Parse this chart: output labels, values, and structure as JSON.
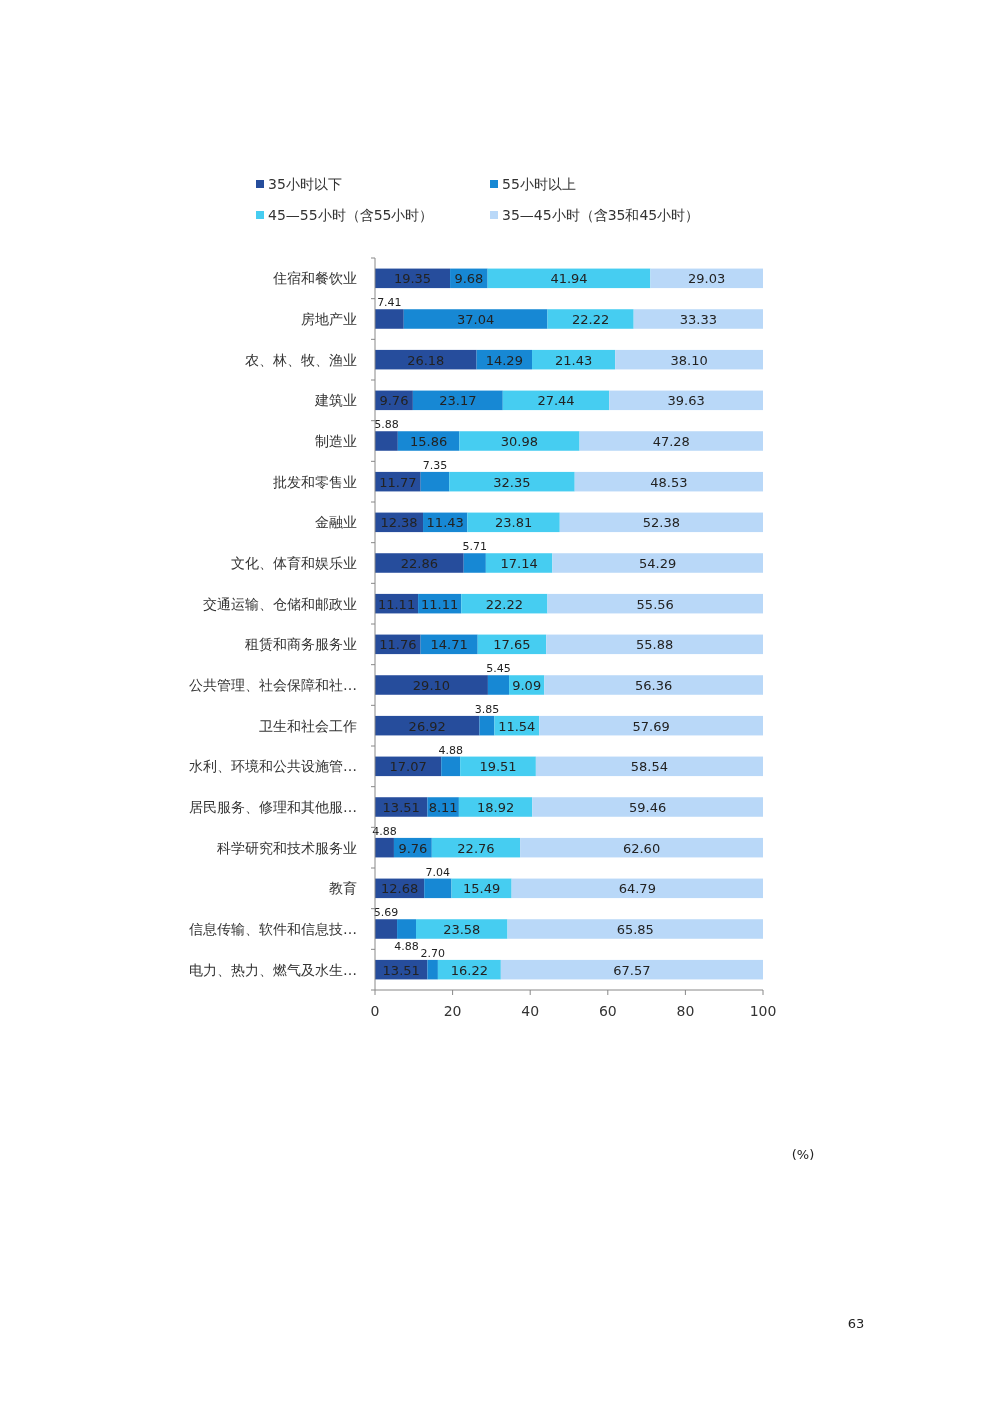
{
  "chart_data": {
    "type": "bar",
    "orientation": "horizontal",
    "stacked": true,
    "categories": [
      "住宿和餐饮业",
      "房地产业",
      "农、林、牧、渔业",
      "建筑业",
      "制造业",
      "批发和零售业",
      "金融业",
      "文化、体育和娱乐业",
      "交通运输、仓储和邮政业",
      "租赁和商务服务业",
      "公共管理、社会保障和社…",
      "卫生和社会工作",
      "水利、环境和公共设施管…",
      "居民服务、修理和其他服…",
      "科学研究和技术服务业",
      "教育",
      "信息传输、软件和信息技…",
      "电力、热力、燃气及水生…"
    ],
    "series": [
      {
        "name": "35小时以下",
        "color": "#264d9c",
        "values": [
          19.35,
          7.41,
          26.18,
          9.76,
          5.88,
          11.77,
          12.38,
          22.86,
          11.11,
          11.76,
          29.1,
          26.92,
          17.07,
          13.51,
          4.88,
          12.68,
          5.69,
          13.51
        ],
        "value_labels": [
          "19.35",
          "7.41",
          "26.18",
          "9.76",
          "5.88",
          "11.77",
          "12.38",
          "22.86",
          "11.11",
          "11.76",
          "29.10",
          "26.92",
          "17.07",
          "13.51",
          "4.88",
          "12.68",
          "5.69",
          "13.51"
        ]
      },
      {
        "name": "55小时以上",
        "color": "#1788d4",
        "values": [
          9.68,
          37.04,
          14.29,
          23.17,
          15.86,
          7.35,
          11.43,
          5.71,
          11.11,
          14.71,
          5.45,
          3.85,
          4.88,
          8.11,
          9.76,
          7.04,
          4.88,
          2.7
        ],
        "value_labels": [
          "9.68",
          "37.04",
          "14.29",
          "23.17",
          "15.86",
          "7.35",
          "11.43",
          "5.71",
          "11.11",
          "14.71",
          "5.45",
          "3.85",
          "4.88",
          "8.11",
          "9.76",
          "7.04",
          "4.88",
          "2.70"
        ]
      },
      {
        "name": "45—55小时（含55小时）",
        "color": "#46cdf1",
        "values": [
          41.94,
          22.22,
          21.43,
          27.44,
          30.98,
          32.35,
          23.81,
          17.14,
          22.22,
          17.65,
          9.09,
          11.54,
          19.51,
          18.92,
          22.76,
          15.49,
          23.58,
          16.22
        ],
        "value_labels": [
          "41.94",
          "22.22",
          "21.43",
          "27.44",
          "30.98",
          "32.35",
          "23.81",
          "17.14",
          "22.22",
          "17.65",
          "9.09",
          "11.54",
          "19.51",
          "18.92",
          "22.76",
          "15.49",
          "23.58",
          "16.22"
        ]
      },
      {
        "name": "35—45小时（含35和45小时）",
        "color": "#b9d8f8",
        "values": [
          29.03,
          33.33,
          38.1,
          39.63,
          47.28,
          48.53,
          52.38,
          54.29,
          55.56,
          55.88,
          56.36,
          57.69,
          58.54,
          59.46,
          62.6,
          64.79,
          65.85,
          67.57
        ],
        "value_labels": [
          "29.03",
          "33.33",
          "38.10",
          "39.63",
          "47.28",
          "48.53",
          "52.38",
          "54.29",
          "55.56",
          "55.88",
          "56.36",
          "57.69",
          "58.54",
          "59.46",
          "62.60",
          "64.79",
          "65.85",
          "67.57"
        ]
      }
    ],
    "xlim": [
      0,
      100
    ],
    "xticks": [
      0,
      20,
      40,
      60,
      80,
      100
    ],
    "legend": "top",
    "annotations": [
      "(%)",
      "63"
    ]
  }
}
